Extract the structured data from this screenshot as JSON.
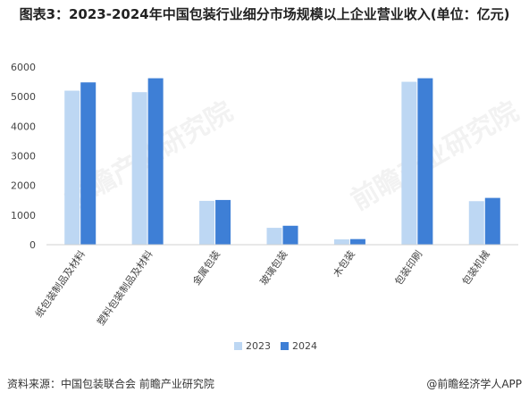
{
  "title": "图表3：2023-2024年中国包装行业细分市场规模以上企业营业收入(单位：亿元)",
  "source": "资料来源：中国包装联合会 前瞻产业研究院",
  "brand": "@前瞻经济学人APP",
  "watermark": "前瞻产业研究院",
  "colors": {
    "s2023": "#bdd7f3",
    "s2024": "#3e7fd6"
  },
  "chart_data": {
    "type": "bar",
    "categories": [
      "纸包装制品及材料",
      "塑料包装制品及材料",
      "金属包装",
      "玻璃包装",
      "木包装",
      "包装印刷",
      "包装机械"
    ],
    "series": [
      {
        "name": "2023",
        "values": [
          5200,
          5150,
          1480,
          570,
          180,
          5500,
          1470
        ]
      },
      {
        "name": "2024",
        "values": [
          5480,
          5620,
          1510,
          640,
          190,
          5620,
          1580
        ]
      }
    ],
    "y_ticks": [
      "0",
      "1000",
      "2000",
      "3000",
      "4000",
      "5000",
      "6000"
    ],
    "ylim": [
      0,
      6000
    ],
    "legend_position": "bottom-center",
    "grid": false
  }
}
